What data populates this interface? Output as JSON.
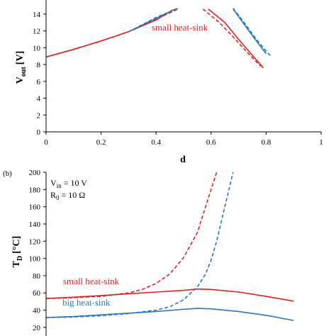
{
  "chart_data": [
    {
      "panel": "a",
      "type": "line",
      "xlabel": "d",
      "ylabel_main": "V",
      "ylabel_sub": "out",
      "ylabel_unit": "[V]",
      "xlim": [
        0,
        1
      ],
      "ylim": [
        0,
        15
      ],
      "xticks": [
        "0",
        "0.2",
        "0.4",
        "0.6",
        "0.8",
        "1"
      ],
      "yticks": [
        "0",
        "2",
        "4",
        "6",
        "8",
        "10",
        "12",
        "14"
      ],
      "annotations": [
        {
          "text": "small heat-sink",
          "color": "#e0201b"
        }
      ],
      "series": [
        {
          "color": "#e0201b",
          "dash": false,
          "x": [
            0.0,
            0.1,
            0.2,
            0.3,
            0.4,
            0.46
          ],
          "y": [
            8.9,
            9.8,
            10.8,
            11.9,
            13.3,
            14.5
          ]
        },
        {
          "color": "#e0201b",
          "dash": true,
          "x": [
            0.0,
            0.1,
            0.2,
            0.3,
            0.4,
            0.48
          ],
          "y": [
            8.9,
            9.8,
            10.8,
            11.9,
            13.4,
            14.6
          ]
        },
        {
          "color": "#2678c0",
          "dash": false,
          "x": [
            0.3,
            0.4,
            0.47
          ],
          "y": [
            11.9,
            13.5,
            14.6
          ]
        },
        {
          "color": "#2678c0",
          "dash": true,
          "x": [
            0.3,
            0.4,
            0.48
          ],
          "y": [
            11.9,
            13.6,
            14.7
          ]
        },
        {
          "color": "#e0201b",
          "dash": false,
          "x": [
            0.59,
            0.65,
            0.7,
            0.75,
            0.79
          ],
          "y": [
            14.6,
            13.0,
            11.0,
            9.1,
            7.6
          ]
        },
        {
          "color": "#e0201b",
          "dash": true,
          "x": [
            0.57,
            0.63,
            0.68,
            0.73,
            0.78
          ],
          "y": [
            14.6,
            13.0,
            11.3,
            9.5,
            7.8
          ]
        },
        {
          "color": "#2678c0",
          "dash": false,
          "x": [
            0.68,
            0.72,
            0.76,
            0.8
          ],
          "y": [
            14.6,
            12.8,
            11.0,
            9.3
          ]
        },
        {
          "color": "#2678c0",
          "dash": true,
          "x": [
            0.68,
            0.72,
            0.76,
            0.8,
            0.82
          ],
          "y": [
            14.7,
            13.0,
            11.2,
            9.6,
            8.9
          ]
        }
      ]
    },
    {
      "panel": "b",
      "panel_label": "(b)",
      "type": "line",
      "ylabel_main": "T",
      "ylabel_sub": "D",
      "ylabel_unit": "[°C]",
      "params": [
        {
          "main": "V",
          "sub": "in",
          "rest": " = 10 V"
        },
        {
          "main": "R",
          "sub": "0",
          "rest": " = 10 Ω"
        }
      ],
      "xlim": [
        0,
        1
      ],
      "ylim": [
        10,
        200
      ],
      "yticks": [
        "20",
        "40",
        "60",
        "80",
        "100",
        "120",
        "140",
        "160",
        "180",
        "200"
      ],
      "annotations": [
        {
          "text": "small heat-sink",
          "color": "#e0201b"
        },
        {
          "text": "big heat-sink",
          "color": "#2678c0"
        }
      ],
      "series": [
        {
          "color": "#e0201b",
          "dash": false,
          "x": [
            0.0,
            0.1,
            0.2,
            0.3,
            0.4,
            0.5,
            0.55,
            0.6,
            0.7,
            0.8,
            0.9
          ],
          "y": [
            53.5,
            55,
            57,
            59,
            61,
            63,
            64.5,
            64,
            61,
            56,
            50.5
          ]
        },
        {
          "color": "#2678c0",
          "dash": false,
          "x": [
            0.0,
            0.1,
            0.2,
            0.3,
            0.4,
            0.5,
            0.55,
            0.6,
            0.7,
            0.8,
            0.9
          ],
          "y": [
            31.5,
            32.5,
            34.5,
            36.5,
            38.5,
            41,
            42,
            41.5,
            38.5,
            34,
            28
          ]
        },
        {
          "color": "#e0201b",
          "dash": true,
          "x": [
            0.0,
            0.1,
            0.2,
            0.3,
            0.35,
            0.4,
            0.45,
            0.5,
            0.55,
            0.6,
            0.62
          ],
          "y": [
            53.5,
            54.5,
            56,
            60,
            64,
            71,
            82,
            101,
            130,
            180,
            200
          ]
        },
        {
          "color": "#2678c0",
          "dash": true,
          "x": [
            0.0,
            0.1,
            0.2,
            0.3,
            0.4,
            0.45,
            0.5,
            0.55,
            0.58,
            0.6,
            0.62,
            0.65,
            0.68
          ],
          "y": [
            31.5,
            32,
            33.5,
            36,
            40,
            44,
            52,
            67,
            82,
            98,
            120,
            160,
            200
          ]
        }
      ]
    }
  ]
}
